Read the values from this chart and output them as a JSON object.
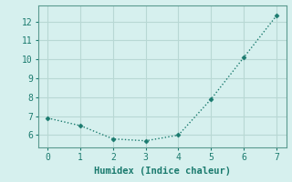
{
  "x": [
    0,
    1,
    2,
    3,
    4,
    5,
    6,
    7
  ],
  "y": [
    6.9,
    6.5,
    5.8,
    5.7,
    6.0,
    7.9,
    10.1,
    12.3
  ],
  "line_color": "#1a7a6e",
  "marker": "D",
  "marker_size": 2.5,
  "line_width": 1.0,
  "line_style": "dotted",
  "xlabel": "Humidex (Indice chaleur)",
  "xlabel_fontsize": 7.5,
  "background_color": "#d6f0ee",
  "grid_color": "#b8d8d4",
  "spine_color": "#5a9a90",
  "tick_color": "#1a7a6e",
  "xlim": [
    -0.3,
    7.3
  ],
  "ylim": [
    5.35,
    12.85
  ],
  "xticks": [
    0,
    1,
    2,
    3,
    4,
    5,
    6,
    7
  ],
  "yticks": [
    6,
    7,
    8,
    9,
    10,
    11,
    12
  ],
  "tick_fontsize": 7,
  "font_family": "monospace"
}
